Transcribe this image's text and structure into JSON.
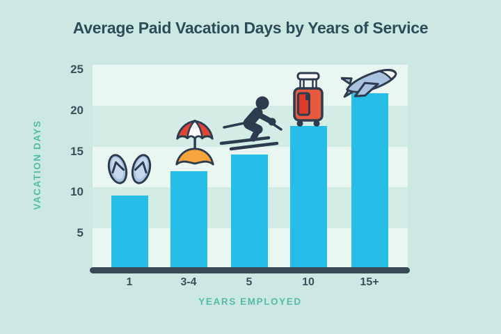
{
  "chart_data": {
    "type": "bar",
    "title": "Average Paid Vacation Days by Years of Service",
    "xlabel": "YEARS EMPLOYED",
    "ylabel": "VACATION DAYS",
    "categories": [
      "1",
      "3-4",
      "5",
      "10",
      "15+"
    ],
    "values": [
      9,
      12,
      14,
      17.5,
      21.5
    ],
    "yticks": [
      5,
      10,
      15,
      20,
      25
    ],
    "ylim": [
      0,
      25
    ],
    "grid": "alternating horizontal bands every 5 units",
    "legend": "none",
    "bar_icons": [
      "flip-flops-icon",
      "beach-umbrella-icon",
      "skier-icon",
      "suitcase-icon",
      "airplane-icon"
    ]
  },
  "colors": {
    "background": "#cbe9e2",
    "band_light": "#eaf6f2",
    "band_dark": "#d3ece6",
    "bar": "#26bee8",
    "axis_line": "#394a56",
    "title_text": "#2e4c58",
    "tick_text": "#3d4f5a",
    "axis_title_text": "#55bba7",
    "icon_outline": "#2c3c4e",
    "icon_blue": "#aac3e1",
    "icon_red": "#e0453a",
    "icon_red_dark": "#dd3b28",
    "icon_orange": "#f5a53c"
  }
}
